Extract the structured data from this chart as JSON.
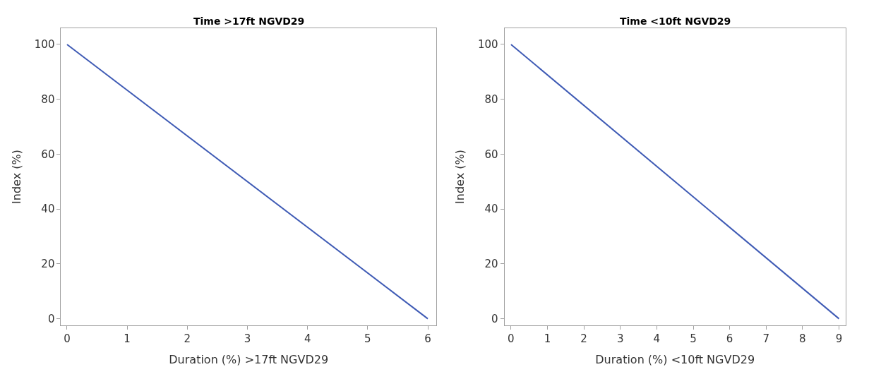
{
  "chart_data": [
    {
      "type": "line",
      "title": "Time >17ft NGVD29",
      "xlabel": "Duration (%) >17ft NGVD29",
      "ylabel": "Index (%)",
      "x": [
        0,
        6
      ],
      "series": [
        {
          "color": "#3f5bb5",
          "values": [
            100,
            0
          ]
        }
      ],
      "xlim": [
        -0.1,
        6.14
      ],
      "ylim": [
        -2.5,
        106
      ],
      "xticks": [
        0,
        1,
        2,
        3,
        4,
        5,
        6
      ],
      "yticks": [
        0,
        20,
        40,
        60,
        80,
        100
      ],
      "grid": false
    },
    {
      "type": "line",
      "title": "Time <10ft NGVD29",
      "xlabel": "Duration (%) <10ft NGVD29",
      "ylabel": "Index (%)",
      "x": [
        0,
        9
      ],
      "series": [
        {
          "color": "#3f5bb5",
          "values": [
            100,
            0
          ]
        }
      ],
      "xlim": [
        -0.18,
        9.18
      ],
      "ylim": [
        -2.5,
        106
      ],
      "xticks": [
        0,
        1,
        2,
        3,
        4,
        5,
        6,
        7,
        8,
        9
      ],
      "yticks": [
        0,
        20,
        40,
        60,
        80,
        100
      ],
      "grid": false
    }
  ]
}
